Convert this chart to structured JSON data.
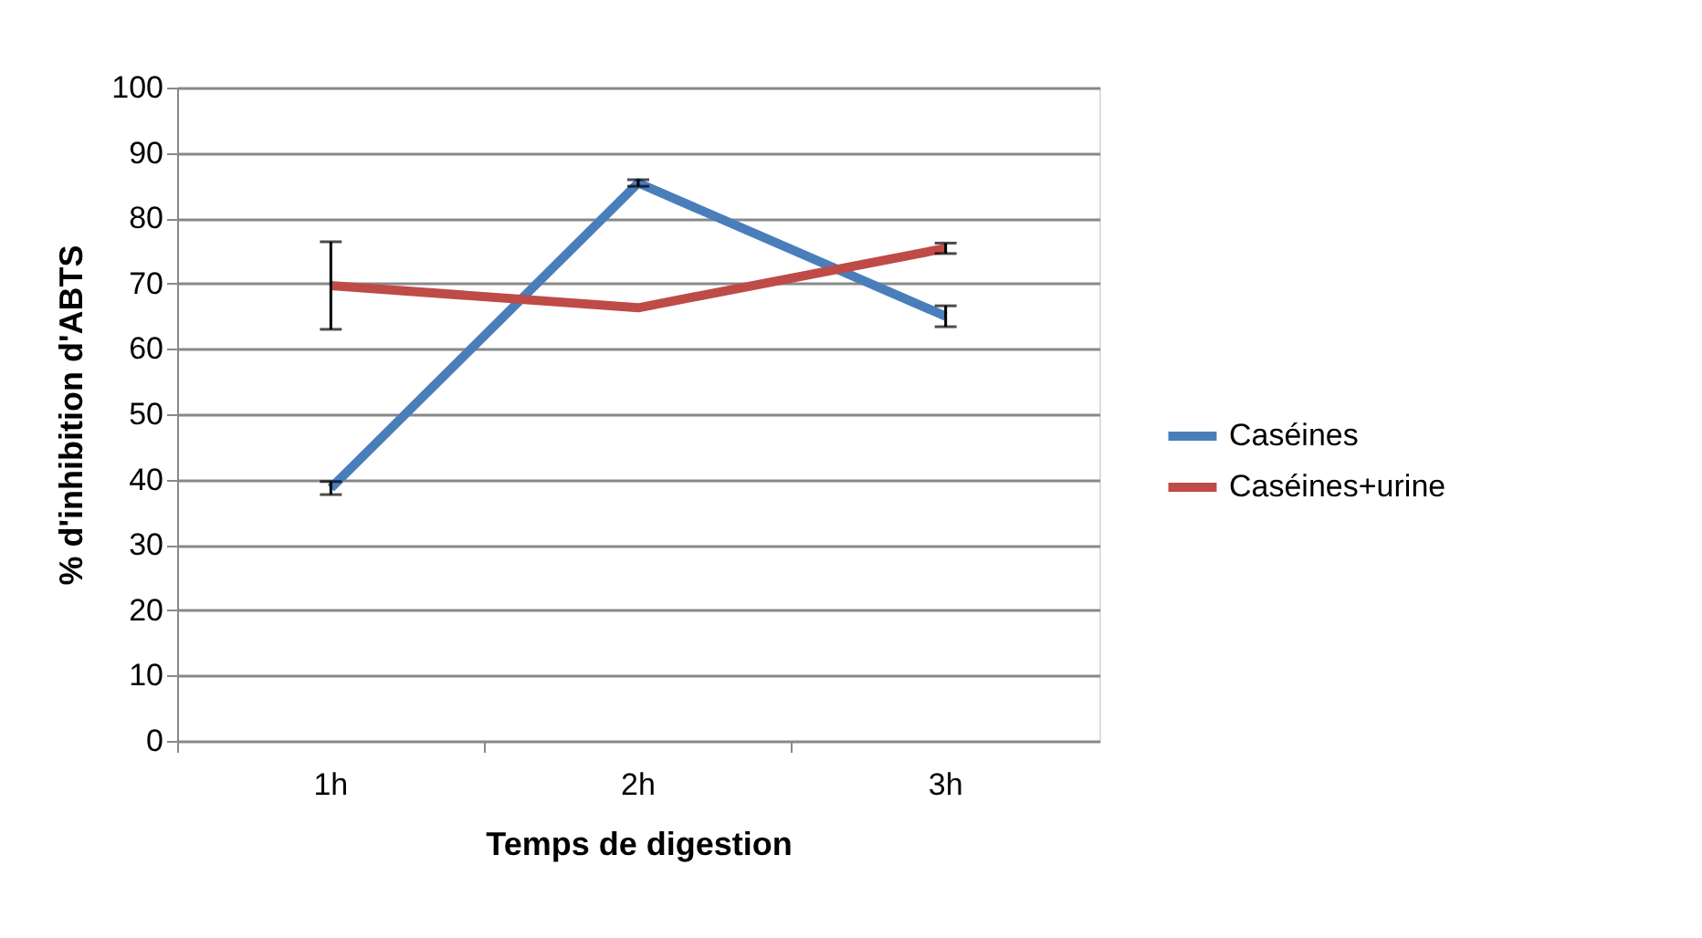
{
  "chart_data": {
    "type": "line",
    "xlabel": "Temps de digestion",
    "ylabel": "% d'inhibition d'ABTS",
    "categories": [
      "1h",
      "2h",
      "3h"
    ],
    "series": [
      {
        "name": "Caséines",
        "color": "#4a7ebb",
        "values": [
          38.7,
          85.4,
          65.0
        ],
        "errors": [
          1.0,
          0.5,
          1.6
        ]
      },
      {
        "name": "Caséines+urine",
        "color": "#be4b48",
        "values": [
          69.7,
          66.3,
          75.4
        ],
        "errors": [
          6.7,
          null,
          0.8
        ]
      }
    ],
    "ylim": [
      0,
      100
    ],
    "yticks": [
      0,
      10,
      20,
      30,
      40,
      50,
      60,
      70,
      80,
      90,
      100
    ],
    "grid": "y",
    "legend": "right",
    "marker": "none",
    "line_style": "solid"
  }
}
